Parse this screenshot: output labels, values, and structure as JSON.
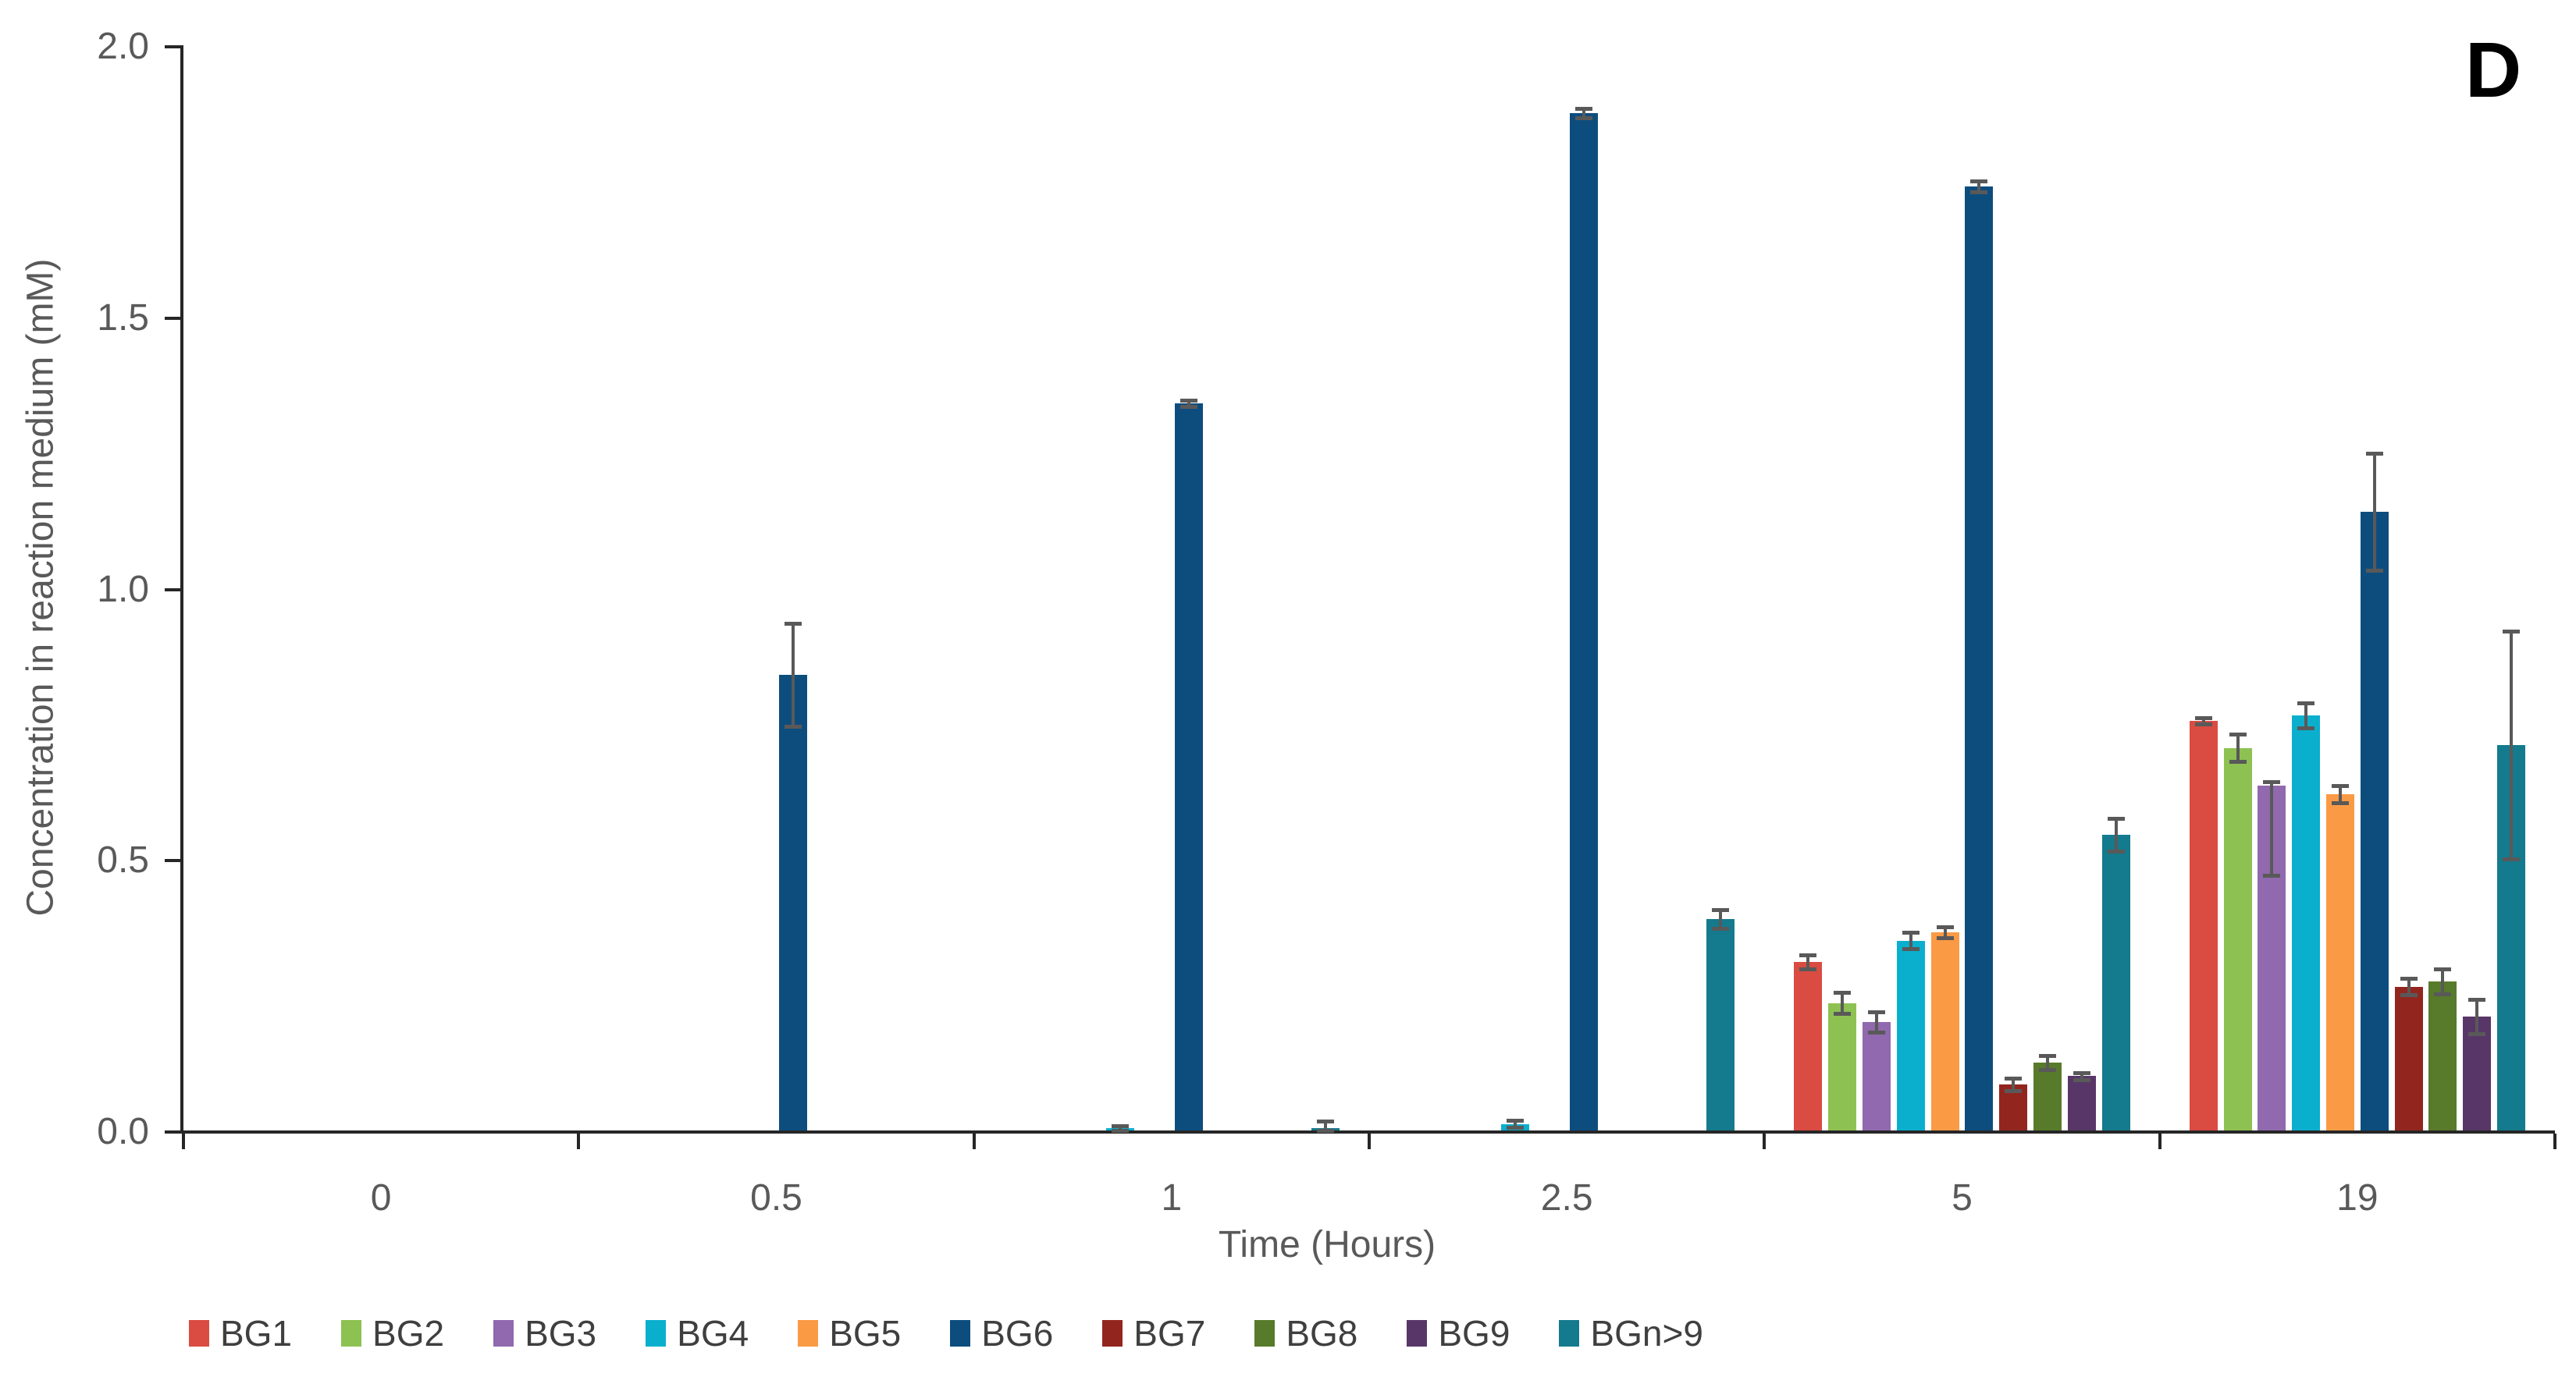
{
  "figure_label": "D",
  "axes": {
    "y": {
      "title": "Concentration in reaction medium (mM)",
      "tick_labels": [
        "0.0",
        "0.5",
        "1.0",
        "1.5",
        "2.0"
      ],
      "tick_values": [
        0.0,
        0.5,
        1.0,
        1.5,
        2.0
      ],
      "max": 2.0
    },
    "x": {
      "title": "Time (Hours)",
      "categories": [
        "0",
        "0.5",
        "1",
        "2.5",
        "5",
        "19"
      ]
    }
  },
  "colors": {
    "axis_line": "#262626",
    "tick_text": "#595959",
    "error_bar": "#595959",
    "legend_text": "#3f3f3f",
    "figure_label": "#000000"
  },
  "chart_data": {
    "type": "bar",
    "title": "",
    "xlabel": "Time (Hours)",
    "ylabel": "Concentration in reaction medium (mM)",
    "ylim": [
      0,
      2.0
    ],
    "grid": false,
    "legend_position": "bottom",
    "categories": [
      "0",
      "0.5",
      "1",
      "2.5",
      "5",
      "19"
    ],
    "series": [
      {
        "name": "BG1",
        "color": "#DA4B42",
        "values": [
          0,
          0,
          0,
          0,
          0.31,
          0.755
        ],
        "err_up": [
          0,
          0,
          0,
          0,
          0.013,
          0.006
        ],
        "err_dn": [
          0,
          0,
          0,
          0,
          0.013,
          0.006
        ]
      },
      {
        "name": "BG2",
        "color": "#8DC152",
        "values": [
          0,
          0,
          0,
          0,
          0.235,
          0.705
        ],
        "err_up": [
          0,
          0,
          0,
          0,
          0.019,
          0.025
        ],
        "err_dn": [
          0,
          0,
          0,
          0,
          0.019,
          0.025
        ]
      },
      {
        "name": "BG3",
        "color": "#9069AE",
        "values": [
          0,
          0,
          0,
          0,
          0.2,
          0.635
        ],
        "err_up": [
          0,
          0,
          0,
          0,
          0.019,
          0.008
        ],
        "err_dn": [
          0,
          0,
          0,
          0,
          0.019,
          0.165
        ]
      },
      {
        "name": "BG4",
        "color": "#0BAFCE",
        "values": [
          0,
          0,
          0.004,
          0.012,
          0.35,
          0.765
        ],
        "err_up": [
          0,
          0,
          0.004,
          0.006,
          0.015,
          0.023
        ],
        "err_dn": [
          0,
          0,
          0.004,
          0.006,
          0.015,
          0.023
        ]
      },
      {
        "name": "BG5",
        "color": "#FB9A44",
        "values": [
          0,
          0,
          0,
          0,
          0.365,
          0.62
        ],
        "err_up": [
          0,
          0,
          0,
          0,
          0.01,
          0.016
        ],
        "err_dn": [
          0,
          0,
          0,
          0,
          0.01,
          0.016
        ]
      },
      {
        "name": "BG6",
        "color": "#0D4D7E",
        "values": [
          0,
          0.84,
          1.34,
          1.875,
          1.74,
          1.14
        ],
        "err_up": [
          0,
          0.095,
          0.006,
          0.008,
          0.01,
          0.108
        ],
        "err_dn": [
          0,
          0.095,
          0.006,
          0.008,
          0.01,
          0.108
        ]
      },
      {
        "name": "BG7",
        "color": "#93251F",
        "values": [
          0,
          0,
          0,
          0,
          0.085,
          0.265
        ],
        "err_up": [
          0,
          0,
          0,
          0,
          0.012,
          0.015
        ],
        "err_dn": [
          0,
          0,
          0,
          0,
          0.012,
          0.015
        ]
      },
      {
        "name": "BG8",
        "color": "#587A2B",
        "values": [
          0,
          0,
          0,
          0,
          0.125,
          0.275
        ],
        "err_up": [
          0,
          0,
          0,
          0,
          0.013,
          0.023
        ],
        "err_dn": [
          0,
          0,
          0,
          0,
          0.013,
          0.023
        ]
      },
      {
        "name": "BG9",
        "color": "#583768",
        "values": [
          0,
          0,
          0,
          0,
          0.1,
          0.21
        ],
        "err_up": [
          0,
          0,
          0,
          0,
          0.007,
          0.032
        ],
        "err_dn": [
          0,
          0,
          0,
          0,
          0.007,
          0.032
        ]
      },
      {
        "name": "BGn>9",
        "color": "#147A8D",
        "values": [
          0,
          0,
          0.005,
          0.39,
          0.545,
          0.71
        ],
        "err_up": [
          0,
          0,
          0.012,
          0.017,
          0.03,
          0.21
        ],
        "err_dn": [
          0,
          0,
          0.012,
          0.017,
          0.03,
          0.21
        ]
      }
    ]
  }
}
